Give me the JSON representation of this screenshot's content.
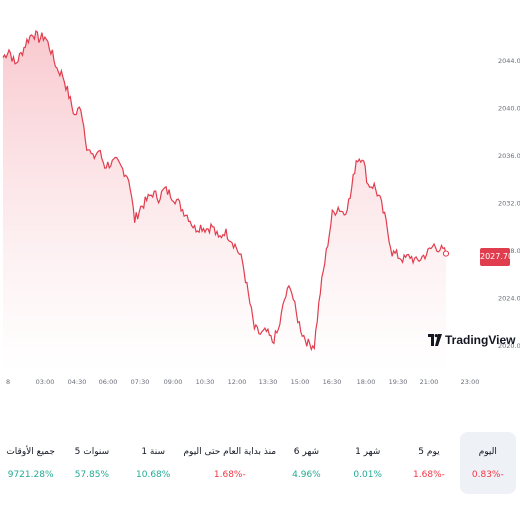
{
  "chart_data": {
    "type": "area",
    "x_ticks": [
      "8",
      "03:00",
      "04:30",
      "06:00",
      "07:30",
      "09:00",
      "10:30",
      "12:00",
      "13:30",
      "15:00",
      "16:30",
      "18:00",
      "19:30",
      "21:00",
      "23:00"
    ],
    "y_ticks": [
      2020.0,
      2024.0,
      2028.0,
      2032.0,
      2036.0,
      2040.0,
      2044.0
    ],
    "y_tick_labels": [
      "2020.00",
      "2024.00",
      "2028.00",
      "2032.00",
      "2036.00",
      "2040.00",
      "2044.00"
    ],
    "ylim": [
      2019.5,
      2048.5
    ],
    "line_color": "#e03e4e",
    "fill_color": "#f8c6cc",
    "series": [
      {
        "values": [
          2044.2,
          2044.9,
          2043.6,
          2044.5,
          2045.6,
          2046.3,
          2045.8,
          2046.0,
          2044.8,
          2043.3,
          2042.7,
          2041.0,
          2039.3,
          2040.1,
          2036.8,
          2035.7,
          2036.4,
          2035.1,
          2035.3,
          2035.4,
          2034.8,
          2034.1,
          2030.5,
          2031.6,
          2032.2,
          2032.8,
          2032.4,
          2033.1,
          2032.7,
          2032.2,
          2031.4,
          2030.8,
          2029.8,
          2030.0,
          2029.8,
          2030.0,
          2028.9,
          2029.6,
          2029.0,
          2028.2,
          2027.0,
          2024.2,
          2021.4,
          2020.9,
          2021.1,
          2020.3,
          2021.2,
          2023.8,
          2025.1,
          2022.6,
          2021.0,
          2020.1,
          2020.0,
          2024.5,
          2027.8,
          2031.0,
          2031.6,
          2031.1,
          2032.4,
          2035.6,
          2035.9,
          2033.5,
          2033.4,
          2032.2,
          2030.3,
          2027.8,
          2027.5,
          2027.2,
          2027.5,
          2027.0,
          2027.4,
          2027.8,
          2028.4,
          2028.1,
          2027.7
        ]
      }
    ]
  },
  "price_badge": "2027.70",
  "branding": {
    "logo_text": "TradingView"
  },
  "periods": [
    {
      "label": "اليوم",
      "value": "0.83%-",
      "trend": "neg",
      "active": true
    },
    {
      "label": "5 يوم",
      "value": "1.68%-",
      "trend": "neg",
      "active": false
    },
    {
      "label": "1 شهر",
      "value": "0.01%",
      "trend": "pos",
      "active": false
    },
    {
      "label": "6 شهر",
      "value": "4.96%",
      "trend": "pos",
      "active": false
    },
    {
      "label": "منذ بداية العام حتى اليوم",
      "value": "1.68%-",
      "trend": "neg",
      "active": false
    },
    {
      "label": "1 سنة",
      "value": "10.68%",
      "trend": "pos",
      "active": false
    },
    {
      "label": "5 سنوات",
      "value": "57.85%",
      "trend": "pos",
      "active": false
    },
    {
      "label": "جميع الأوقات",
      "value": "9721.28%",
      "trend": "pos",
      "active": false
    }
  ]
}
